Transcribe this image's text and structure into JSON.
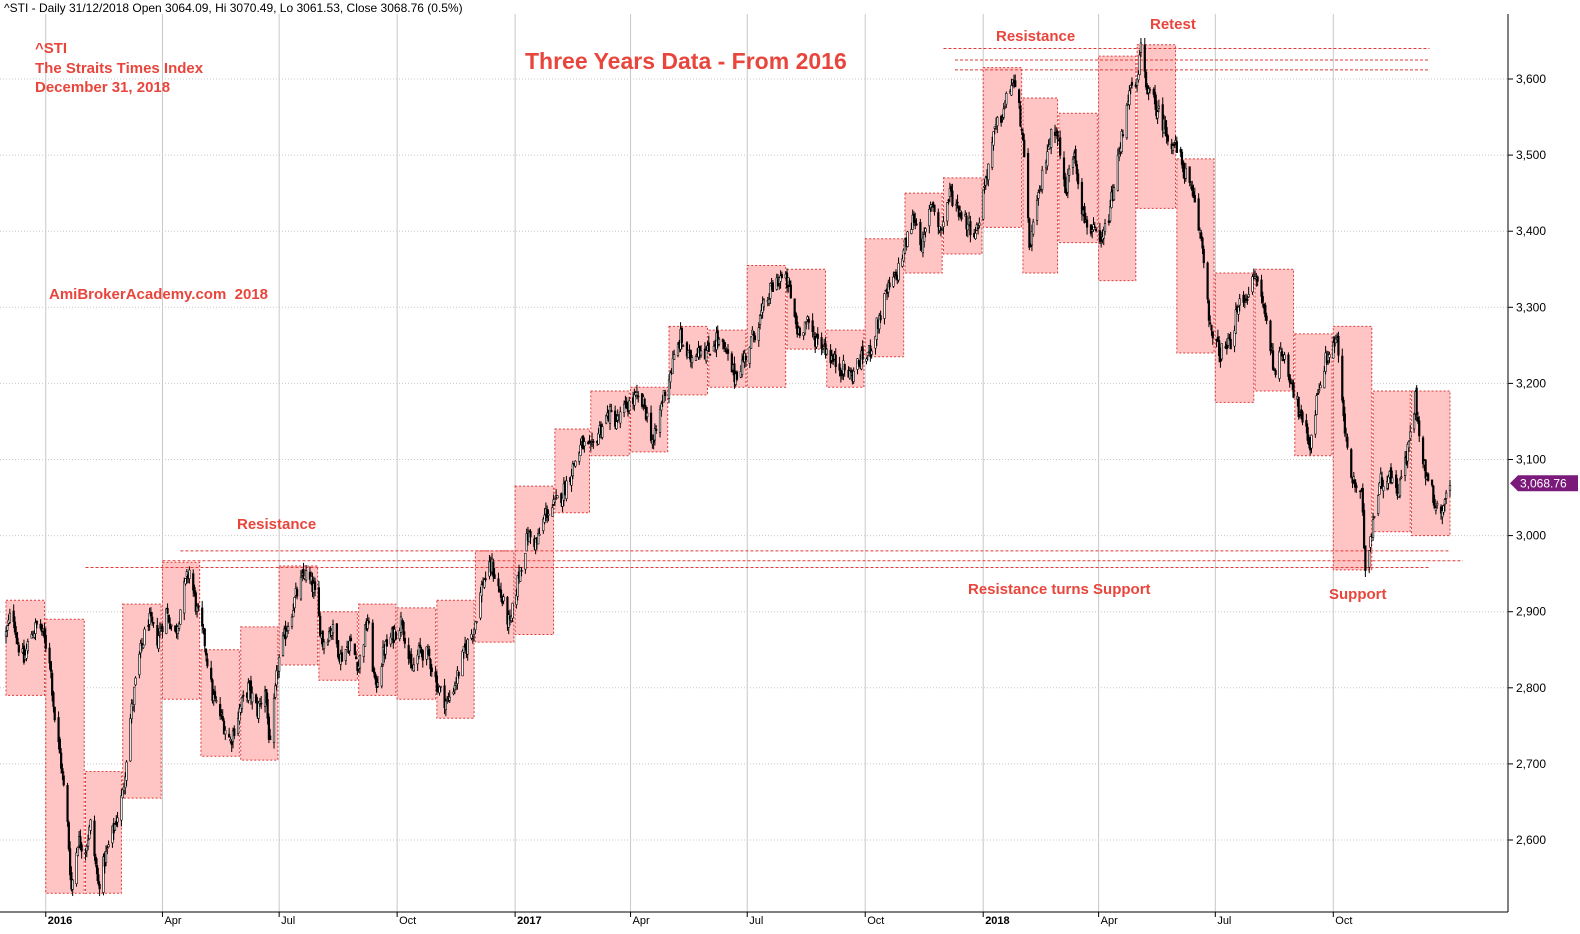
{
  "header": "^STI - Daily 31/12/2018 Open 3064.09, Hi 3070.49, Lo 3061.53, Close 3068.76 (0.5%)",
  "info": {
    "symbol": "^STI",
    "name": "The Straits Times Index",
    "date": "December 31, 2018",
    "watermark": "AmiBrokerAcademy.com  2018"
  },
  "annotations": {
    "title": "Three Years Data - From 2016",
    "resistance_2016": "Resistance",
    "resistance_2018": "Resistance",
    "retest": "Retest",
    "resistance_turns_support": "Resistance turns Support",
    "support": "Support"
  },
  "last_price_label": "3,068.76",
  "colors": {
    "annotation": "#e8463c",
    "box_fill": "#ffc4c4",
    "box_border": "#e03a3a",
    "candle": "#000000",
    "grid": "#c8c8c8",
    "price_tag": "#7a1a7a"
  },
  "chart_data": {
    "type": "candlestick",
    "x_range": [
      "2015-12-01",
      "2018-12-31"
    ],
    "ylim": [
      2500,
      3650
    ],
    "y_ticks": [
      2600,
      2700,
      2800,
      2900,
      3000,
      3100,
      3200,
      3300,
      3400,
      3500,
      3600
    ],
    "y_tick_labels": [
      "2,600",
      "2,700",
      "2,800",
      "2,900",
      "3,000",
      "3,100",
      "3,200",
      "3,300",
      "3,400",
      "3,500",
      "3,600"
    ],
    "x_ticks": [
      {
        "date": "2016-01-01",
        "label": "2016",
        "bold": true
      },
      {
        "date": "2016-04-01",
        "label": "Apr",
        "bold": false
      },
      {
        "date": "2016-07-01",
        "label": "Jul",
        "bold": false
      },
      {
        "date": "2016-10-01",
        "label": "Oct",
        "bold": false
      },
      {
        "date": "2017-01-01",
        "label": "2017",
        "bold": true
      },
      {
        "date": "2017-04-01",
        "label": "Apr",
        "bold": false
      },
      {
        "date": "2017-07-01",
        "label": "Jul",
        "bold": false
      },
      {
        "date": "2017-10-01",
        "label": "Oct",
        "bold": false
      },
      {
        "date": "2018-01-01",
        "label": "2018",
        "bold": true
      },
      {
        "date": "2018-04-01",
        "label": "Apr",
        "bold": false
      },
      {
        "date": "2018-07-01",
        "label": "Jul",
        "bold": false
      },
      {
        "date": "2018-10-01",
        "label": "Oct",
        "bold": false
      }
    ],
    "last_close": 3068.76,
    "price_path": [
      [
        "2015-12-01",
        2870
      ],
      [
        "2015-12-06",
        2905
      ],
      [
        "2015-12-10",
        2860
      ],
      [
        "2015-12-15",
        2835
      ],
      [
        "2015-12-20",
        2870
      ],
      [
        "2015-12-27",
        2885
      ],
      [
        "2016-01-04",
        2840
      ],
      [
        "2016-01-08",
        2760
      ],
      [
        "2016-01-13",
        2700
      ],
      [
        "2016-01-18",
        2620
      ],
      [
        "2016-01-21",
        2535
      ],
      [
        "2016-01-26",
        2600
      ],
      [
        "2016-02-01",
        2590
      ],
      [
        "2016-02-05",
        2620
      ],
      [
        "2016-02-11",
        2540
      ],
      [
        "2016-02-17",
        2580
      ],
      [
        "2016-02-24",
        2620
      ],
      [
        "2016-03-01",
        2660
      ],
      [
        "2016-03-07",
        2760
      ],
      [
        "2016-03-14",
        2840
      ],
      [
        "2016-03-21",
        2890
      ],
      [
        "2016-03-28",
        2865
      ],
      [
        "2016-04-04",
        2900
      ],
      [
        "2016-04-11",
        2870
      ],
      [
        "2016-04-18",
        2930
      ],
      [
        "2016-04-22",
        2955
      ],
      [
        "2016-04-28",
        2900
      ],
      [
        "2016-05-04",
        2860
      ],
      [
        "2016-05-10",
        2790
      ],
      [
        "2016-05-17",
        2760
      ],
      [
        "2016-05-24",
        2730
      ],
      [
        "2016-05-31",
        2770
      ],
      [
        "2016-06-07",
        2800
      ],
      [
        "2016-06-14",
        2770
      ],
      [
        "2016-06-20",
        2800
      ],
      [
        "2016-06-24",
        2720
      ],
      [
        "2016-06-30",
        2830
      ],
      [
        "2016-07-07",
        2880
      ],
      [
        "2016-07-14",
        2920
      ],
      [
        "2016-07-21",
        2950
      ],
      [
        "2016-07-28",
        2930
      ],
      [
        "2016-08-04",
        2860
      ],
      [
        "2016-08-11",
        2880
      ],
      [
        "2016-08-18",
        2840
      ],
      [
        "2016-08-25",
        2860
      ],
      [
        "2016-09-01",
        2830
      ],
      [
        "2016-09-08",
        2890
      ],
      [
        "2016-09-14",
        2800
      ],
      [
        "2016-09-21",
        2850
      ],
      [
        "2016-09-28",
        2870
      ],
      [
        "2016-10-05",
        2890
      ],
      [
        "2016-10-12",
        2820
      ],
      [
        "2016-10-19",
        2850
      ],
      [
        "2016-10-26",
        2840
      ],
      [
        "2016-11-02",
        2800
      ],
      [
        "2016-11-09",
        2780
      ],
      [
        "2016-11-16",
        2810
      ],
      [
        "2016-11-23",
        2850
      ],
      [
        "2016-11-30",
        2880
      ],
      [
        "2016-12-07",
        2940
      ],
      [
        "2016-12-14",
        2960
      ],
      [
        "2016-12-21",
        2920
      ],
      [
        "2016-12-28",
        2880
      ],
      [
        "2017-01-04",
        2950
      ],
      [
        "2017-01-11",
        3000
      ],
      [
        "2017-01-18",
        2990
      ],
      [
        "2017-01-25",
        3030
      ],
      [
        "2017-02-01",
        3040
      ],
      [
        "2017-02-08",
        3060
      ],
      [
        "2017-02-15",
        3090
      ],
      [
        "2017-02-22",
        3120
      ],
      [
        "2017-03-01",
        3110
      ],
      [
        "2017-03-08",
        3140
      ],
      [
        "2017-03-15",
        3160
      ],
      [
        "2017-03-22",
        3150
      ],
      [
        "2017-03-29",
        3170
      ],
      [
        "2017-04-05",
        3180
      ],
      [
        "2017-04-12",
        3170
      ],
      [
        "2017-04-19",
        3120
      ],
      [
        "2017-04-26",
        3180
      ],
      [
        "2017-05-03",
        3220
      ],
      [
        "2017-05-10",
        3260
      ],
      [
        "2017-05-17",
        3230
      ],
      [
        "2017-05-24",
        3250
      ],
      [
        "2017-05-31",
        3240
      ],
      [
        "2017-06-07",
        3260
      ],
      [
        "2017-06-14",
        3240
      ],
      [
        "2017-06-21",
        3210
      ],
      [
        "2017-06-28",
        3230
      ],
      [
        "2017-07-05",
        3260
      ],
      [
        "2017-07-12",
        3290
      ],
      [
        "2017-07-19",
        3320
      ],
      [
        "2017-07-26",
        3340
      ],
      [
        "2017-08-02",
        3330
      ],
      [
        "2017-08-09",
        3270
      ],
      [
        "2017-08-16",
        3280
      ],
      [
        "2017-08-23",
        3260
      ],
      [
        "2017-08-30",
        3250
      ],
      [
        "2017-09-06",
        3230
      ],
      [
        "2017-09-13",
        3220
      ],
      [
        "2017-09-20",
        3210
      ],
      [
        "2017-09-27",
        3230
      ],
      [
        "2017-10-04",
        3240
      ],
      [
        "2017-10-11",
        3280
      ],
      [
        "2017-10-18",
        3320
      ],
      [
        "2017-10-25",
        3340
      ],
      [
        "2017-11-01",
        3380
      ],
      [
        "2017-11-08",
        3420
      ],
      [
        "2017-11-15",
        3380
      ],
      [
        "2017-11-22",
        3440
      ],
      [
        "2017-11-29",
        3400
      ],
      [
        "2017-12-06",
        3450
      ],
      [
        "2017-12-13",
        3430
      ],
      [
        "2017-12-20",
        3410
      ],
      [
        "2017-12-27",
        3400
      ],
      [
        "2018-01-03",
        3470
      ],
      [
        "2018-01-10",
        3530
      ],
      [
        "2018-01-17",
        3560
      ],
      [
        "2018-01-24",
        3600
      ],
      [
        "2018-01-31",
        3540
      ],
      [
        "2018-02-06",
        3380
      ],
      [
        "2018-02-13",
        3440
      ],
      [
        "2018-02-20",
        3510
      ],
      [
        "2018-02-27",
        3540
      ],
      [
        "2018-03-06",
        3450
      ],
      [
        "2018-03-13",
        3510
      ],
      [
        "2018-03-20",
        3420
      ],
      [
        "2018-03-27",
        3400
      ],
      [
        "2018-04-03",
        3380
      ],
      [
        "2018-04-10",
        3430
      ],
      [
        "2018-04-17",
        3500
      ],
      [
        "2018-04-24",
        3580
      ],
      [
        "2018-05-01",
        3590
      ],
      [
        "2018-05-04",
        3640
      ],
      [
        "2018-05-10",
        3580
      ],
      [
        "2018-05-17",
        3560
      ],
      [
        "2018-05-24",
        3530
      ],
      [
        "2018-05-31",
        3510
      ],
      [
        "2018-06-07",
        3480
      ],
      [
        "2018-06-14",
        3440
      ],
      [
        "2018-06-21",
        3380
      ],
      [
        "2018-06-28",
        3260
      ],
      [
        "2018-07-05",
        3240
      ],
      [
        "2018-07-12",
        3250
      ],
      [
        "2018-07-19",
        3300
      ],
      [
        "2018-07-26",
        3320
      ],
      [
        "2018-08-02",
        3340
      ],
      [
        "2018-08-09",
        3290
      ],
      [
        "2018-08-16",
        3220
      ],
      [
        "2018-08-23",
        3240
      ],
      [
        "2018-08-30",
        3200
      ],
      [
        "2018-09-06",
        3150
      ],
      [
        "2018-09-13",
        3120
      ],
      [
        "2018-09-20",
        3200
      ],
      [
        "2018-09-27",
        3240
      ],
      [
        "2018-10-04",
        3260
      ],
      [
        "2018-10-09",
        3150
      ],
      [
        "2018-10-16",
        3070
      ],
      [
        "2018-10-23",
        3050
      ],
      [
        "2018-10-26",
        2960
      ],
      [
        "2018-10-30",
        3000
      ],
      [
        "2018-11-06",
        3070
      ],
      [
        "2018-11-13",
        3080
      ],
      [
        "2018-11-20",
        3060
      ],
      [
        "2018-11-27",
        3100
      ],
      [
        "2018-12-04",
        3180
      ],
      [
        "2018-12-11",
        3090
      ],
      [
        "2018-12-18",
        3050
      ],
      [
        "2018-12-24",
        3030
      ],
      [
        "2018-12-31",
        3068.76
      ]
    ],
    "range_boxes": [
      {
        "start": "2015-12-01",
        "end": "2015-12-31",
        "low": 2790,
        "high": 2915
      },
      {
        "start": "2016-01-01",
        "end": "2016-01-31",
        "low": 2530,
        "high": 2890
      },
      {
        "start": "2016-02-01",
        "end": "2016-02-29",
        "low": 2530,
        "high": 2690
      },
      {
        "start": "2016-03-01",
        "end": "2016-03-31",
        "low": 2655,
        "high": 2910
      },
      {
        "start": "2016-04-01",
        "end": "2016-04-30",
        "low": 2785,
        "high": 2965
      },
      {
        "start": "2016-05-01",
        "end": "2016-05-31",
        "low": 2710,
        "high": 2850
      },
      {
        "start": "2016-06-01",
        "end": "2016-06-30",
        "low": 2705,
        "high": 2880
      },
      {
        "start": "2016-07-01",
        "end": "2016-07-31",
        "low": 2830,
        "high": 2960
      },
      {
        "start": "2016-08-01",
        "end": "2016-08-31",
        "low": 2810,
        "high": 2900
      },
      {
        "start": "2016-09-01",
        "end": "2016-09-30",
        "low": 2790,
        "high": 2910
      },
      {
        "start": "2016-10-01",
        "end": "2016-10-31",
        "low": 2785,
        "high": 2905
      },
      {
        "start": "2016-11-01",
        "end": "2016-11-30",
        "low": 2760,
        "high": 2915
      },
      {
        "start": "2016-12-01",
        "end": "2016-12-31",
        "low": 2860,
        "high": 2980
      },
      {
        "start": "2017-01-01",
        "end": "2017-01-31",
        "low": 2870,
        "high": 3065
      },
      {
        "start": "2017-02-01",
        "end": "2017-02-28",
        "low": 3030,
        "high": 3140
      },
      {
        "start": "2017-03-01",
        "end": "2017-03-31",
        "low": 3105,
        "high": 3190
      },
      {
        "start": "2017-04-01",
        "end": "2017-04-30",
        "low": 3110,
        "high": 3195
      },
      {
        "start": "2017-05-01",
        "end": "2017-05-31",
        "low": 3185,
        "high": 3275
      },
      {
        "start": "2017-06-01",
        "end": "2017-06-30",
        "low": 3195,
        "high": 3270
      },
      {
        "start": "2017-07-01",
        "end": "2017-07-31",
        "low": 3195,
        "high": 3355
      },
      {
        "start": "2017-08-01",
        "end": "2017-08-31",
        "low": 3245,
        "high": 3350
      },
      {
        "start": "2017-09-01",
        "end": "2017-09-30",
        "low": 3195,
        "high": 3270
      },
      {
        "start": "2017-10-01",
        "end": "2017-10-31",
        "low": 3235,
        "high": 3390
      },
      {
        "start": "2017-11-01",
        "end": "2017-11-30",
        "low": 3345,
        "high": 3450
      },
      {
        "start": "2017-12-01",
        "end": "2017-12-31",
        "low": 3370,
        "high": 3470
      },
      {
        "start": "2018-01-01",
        "end": "2018-01-31",
        "low": 3405,
        "high": 3615
      },
      {
        "start": "2018-02-01",
        "end": "2018-02-28",
        "low": 3345,
        "high": 3575
      },
      {
        "start": "2018-03-01",
        "end": "2018-03-31",
        "low": 3385,
        "high": 3555
      },
      {
        "start": "2018-04-01",
        "end": "2018-04-30",
        "low": 3335,
        "high": 3630
      },
      {
        "start": "2018-05-01",
        "end": "2018-05-31",
        "low": 3430,
        "high": 3645
      },
      {
        "start": "2018-06-01",
        "end": "2018-06-30",
        "low": 3240,
        "high": 3495
      },
      {
        "start": "2018-07-01",
        "end": "2018-07-31",
        "low": 3175,
        "high": 3345
      },
      {
        "start": "2018-08-01",
        "end": "2018-08-31",
        "low": 3190,
        "high": 3350
      },
      {
        "start": "2018-09-01",
        "end": "2018-09-30",
        "low": 3105,
        "high": 3265
      },
      {
        "start": "2018-10-01",
        "end": "2018-10-31",
        "low": 2955,
        "high": 3275
      },
      {
        "start": "2018-11-01",
        "end": "2018-11-30",
        "low": 3005,
        "high": 3190
      },
      {
        "start": "2018-12-01",
        "end": "2018-12-31",
        "low": 3000,
        "high": 3190
      }
    ],
    "level_lines": [
      {
        "start": "2016-04-15",
        "end": "2018-12-31",
        "value": 2980
      },
      {
        "start": "2016-04-01",
        "end": "2019-01-10",
        "value": 2967
      },
      {
        "start": "2016-02-01",
        "end": "2018-12-15",
        "value": 2958
      },
      {
        "start": "2017-12-01",
        "end": "2018-12-15",
        "value": 3640
      },
      {
        "start": "2017-12-10",
        "end": "2018-12-15",
        "value": 3625
      },
      {
        "start": "2017-12-10",
        "end": "2018-12-15",
        "value": 3612
      }
    ]
  }
}
